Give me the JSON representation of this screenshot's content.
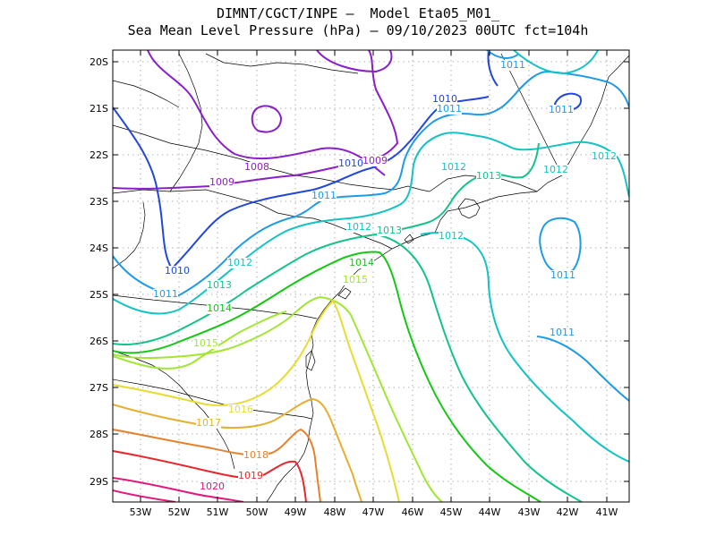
{
  "title_line1": "DIMNT/CGCT/INPE —  Model Eta05_M01_",
  "title_line2": "Sea Mean Level Pressure (hPa) — 09/10/2023 00UTC fct=104h",
  "lon_ticks": [
    "53W",
    "52W",
    "51W",
    "50W",
    "49W",
    "48W",
    "47W",
    "46W",
    "45W",
    "44W",
    "43W",
    "42W",
    "41W"
  ],
  "lat_ticks": [
    "20S",
    "21S",
    "22S",
    "23S",
    "24S",
    "25S",
    "26S",
    "27S",
    "28S",
    "29S"
  ],
  "colors": {
    "1008": "#8a1ec8",
    "1009": "#8a1ec8",
    "1010": "#2346dc",
    "1011": "#1e9be6",
    "1012": "#14c3c3",
    "1013": "#14c38c",
    "1014": "#14c814",
    "1015": "#a0e632",
    "1016": "#e6dc32",
    "1017": "#e6af2d",
    "1018": "#e6822d",
    "1019": "#e6282d",
    "1020": "#e6147d",
    "coast": "#000000",
    "grid": "#999999"
  },
  "contour_labels": [
    {
      "text": "1008",
      "level": "1008"
    },
    {
      "text": "1009",
      "level": "1009"
    },
    {
      "text": "1009",
      "level": "1009"
    },
    {
      "text": "1010",
      "level": "1010"
    },
    {
      "text": "1010",
      "level": "1010"
    },
    {
      "text": "1010",
      "level": "1010"
    },
    {
      "text": "1011",
      "level": "1011"
    },
    {
      "text": "1011",
      "level": "1011"
    },
    {
      "text": "1011",
      "level": "1011"
    },
    {
      "text": "1011",
      "level": "1011"
    },
    {
      "text": "1011",
      "level": "1011"
    },
    {
      "text": "1011",
      "level": "1011"
    },
    {
      "text": "1011",
      "level": "1011"
    },
    {
      "text": "1012",
      "level": "1012"
    },
    {
      "text": "1012",
      "level": "1012"
    },
    {
      "text": "1012",
      "level": "1012"
    },
    {
      "text": "1012",
      "level": "1012"
    },
    {
      "text": "1012",
      "level": "1012"
    },
    {
      "text": "1012",
      "level": "1012"
    },
    {
      "text": "1013",
      "level": "1013"
    },
    {
      "text": "1013",
      "level": "1013"
    },
    {
      "text": "1013",
      "level": "1013"
    },
    {
      "text": "1014",
      "level": "1014"
    },
    {
      "text": "1014",
      "level": "1014"
    },
    {
      "text": "1015",
      "level": "1015"
    },
    {
      "text": "1015",
      "level": "1015"
    },
    {
      "text": "1016",
      "level": "1016"
    },
    {
      "text": "1017",
      "level": "1017"
    },
    {
      "text": "1018",
      "level": "1018"
    },
    {
      "text": "1019",
      "level": "1019"
    },
    {
      "text": "1020",
      "level": "1020"
    }
  ]
}
